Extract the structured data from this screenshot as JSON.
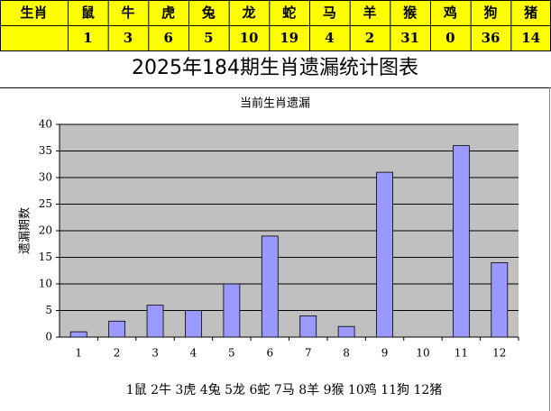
{
  "table": {
    "header": [
      "生肖",
      "鼠",
      "牛",
      "虎",
      "兔",
      "龙",
      "蛇",
      "马",
      "羊",
      "猴",
      "鸡",
      "狗",
      "猪"
    ]
  },
  "chart_data": {
    "type": "bar",
    "title": "2025年184期生肖遗漏统计图表",
    "subtitle": "当前生肖遗漏",
    "y_label": "遗漏期数",
    "categories": [
      "1",
      "2",
      "3",
      "4",
      "5",
      "6",
      "7",
      "8",
      "9",
      "10",
      "11",
      "12"
    ],
    "values": [
      1,
      3,
      6,
      5,
      10,
      19,
      4,
      2,
      31,
      0,
      36,
      14
    ],
    "color": "#9999ff",
    "ylim": [
      0,
      40
    ],
    "yticks": [
      0,
      5,
      10,
      15,
      20,
      25,
      30,
      35,
      40
    ],
    "grid": true,
    "x_caption": "1鼠 2牛 3虎 4兔 5龙 6蛇 7马 8羊 9猴 10鸡 11狗 12猪"
  }
}
